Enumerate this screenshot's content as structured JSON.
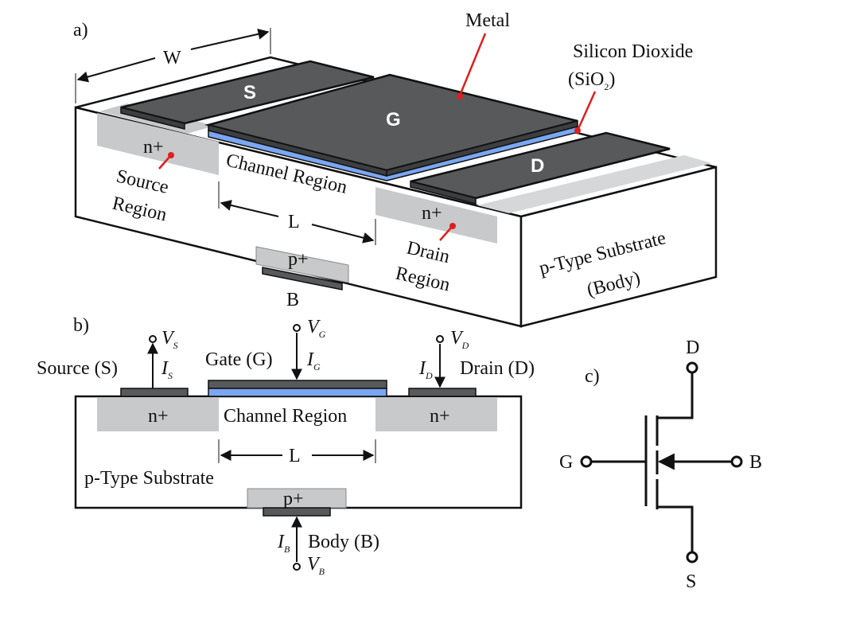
{
  "panel_labels": {
    "a": "a)",
    "b": "b)",
    "c": "c)"
  },
  "panel_a": {
    "width_label": "W",
    "length_label": "L",
    "metal_label": "Metal",
    "oxide_label_line1": "Silicon Dioxide",
    "oxide_label_line2_main": "(SiO",
    "oxide_label_line2_sub": "2",
    "oxide_label_line2_end": ")",
    "source_terminal": "S",
    "gate_terminal": "G",
    "drain_terminal": "D",
    "body_terminal": "B",
    "channel_label": "Channel Region",
    "source_nplus": "n+",
    "source_region_line1": "Source",
    "source_region_line2": "Region",
    "drain_nplus": "n+",
    "drain_region_line1": "Drain",
    "drain_region_line2": "Region",
    "pplus": "p+",
    "substrate_line1": "p-Type Substrate",
    "substrate_line2": "(Body)"
  },
  "panel_b": {
    "source_label": "Source (S)",
    "gate_label": "Gate (G)",
    "drain_label": "Drain (D)",
    "body_label": "Body (B)",
    "vs": "V",
    "vs_sub": "S",
    "vg": "V",
    "vg_sub": "G",
    "vd": "V",
    "vd_sub": "D",
    "vb": "V",
    "vb_sub": "B",
    "is": "I",
    "is_sub": "S",
    "ig": "I",
    "ig_sub": "G",
    "id": "I",
    "id_sub": "D",
    "ib": "I",
    "ib_sub": "B",
    "source_nplus": "n+",
    "drain_nplus": "n+",
    "channel_label": "Channel Region",
    "length_label": "L",
    "substrate_label": "p-Type Substrate",
    "pplus": "p+"
  },
  "panel_c": {
    "drain": "D",
    "gate": "G",
    "body": "B",
    "source": "S"
  },
  "colors": {
    "metal": "#58595b",
    "metal_top": "#4b4c4e",
    "oxide": "#7aa7f2",
    "nplus": "#c8c9ca",
    "substrate": "#ffffff",
    "pointer": "#e01e1e",
    "outline": "#111111"
  }
}
